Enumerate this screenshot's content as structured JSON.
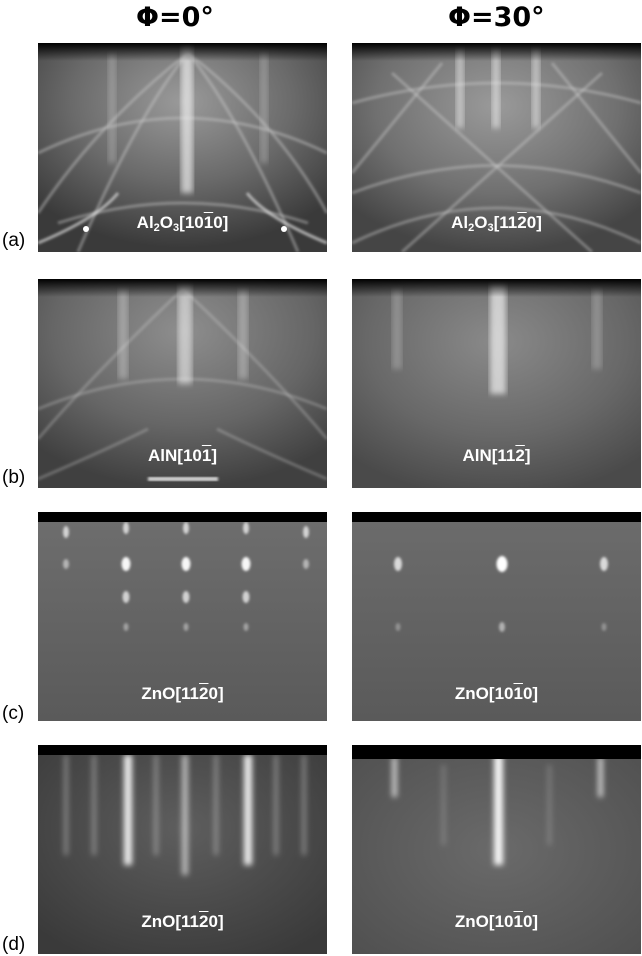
{
  "columns": [
    {
      "symbol": "Φ",
      "value": "=0°"
    },
    {
      "symbol": "Φ",
      "value": "=30°"
    }
  ],
  "rows": [
    {
      "tag": "(a)",
      "panels": [
        {
          "pre": "Al",
          "sub": "2",
          "mid": "O",
          "sub2": "3",
          "open": "[10",
          "bar": "1",
          "close": "0]"
        },
        {
          "pre": "Al",
          "sub": "2",
          "mid": "O",
          "sub2": "3",
          "open": "[11",
          "bar": "2",
          "close": "0]"
        }
      ]
    },
    {
      "tag": "(b)",
      "panels": [
        {
          "pre": "AlN",
          "sub": "",
          "mid": "",
          "sub2": "",
          "open": "[10",
          "bar": "1",
          "close": "]"
        },
        {
          "pre": "AlN",
          "sub": "",
          "mid": "",
          "sub2": "",
          "open": "[11",
          "bar": "2",
          "close": "]"
        }
      ]
    },
    {
      "tag": "(c)",
      "panels": [
        {
          "pre": "ZnO",
          "sub": "",
          "mid": "",
          "sub2": "",
          "open": "[11",
          "bar": "2",
          "close": "0]"
        },
        {
          "pre": "ZnO",
          "sub": "",
          "mid": "",
          "sub2": "",
          "open": "[10",
          "bar": "1",
          "close": "0]"
        }
      ]
    },
    {
      "tag": "(d)",
      "panels": [
        {
          "pre": "ZnO",
          "sub": "",
          "mid": "",
          "sub2": "",
          "open": "[11",
          "bar": "2",
          "close": "0]"
        },
        {
          "pre": "ZnO",
          "sub": "",
          "mid": "",
          "sub2": "",
          "open": "[10",
          "bar": "1",
          "close": "0]"
        }
      ]
    }
  ]
}
